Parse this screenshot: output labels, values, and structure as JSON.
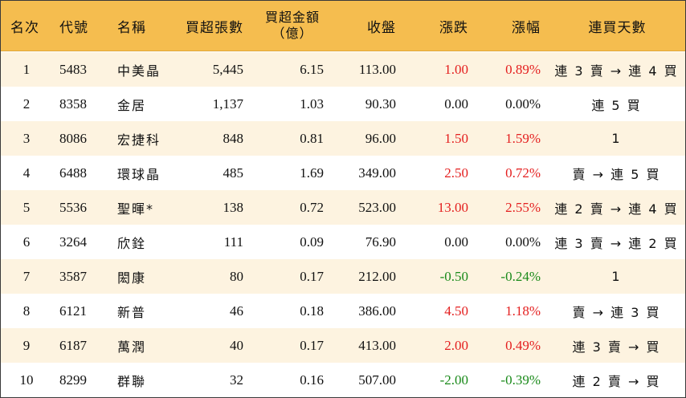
{
  "headers": {
    "rank": "名次",
    "code": "代號",
    "name": "名稱",
    "net_lots": "買超張數",
    "net_amount_line1": "買超金額",
    "net_amount_line2": "（億）",
    "close": "收盤",
    "change": "漲跌",
    "change_pct": "漲幅",
    "streak": "連買天數"
  },
  "colors": {
    "header_bg": "#f5bd4f",
    "row_alt_bg": "#fdf3e0",
    "up": "#e41f1f",
    "down": "#1a8a1a"
  },
  "rows": [
    {
      "rank": "1",
      "code": "5483",
      "name": "中美晶",
      "net_lots": "5,445",
      "net_amount": "6.15",
      "close": "113.00",
      "change": "1.00",
      "change_pct": "0.89%",
      "dir": "up",
      "streak": "連 3 賣 → 連 4 買"
    },
    {
      "rank": "2",
      "code": "8358",
      "name": "金居",
      "net_lots": "1,137",
      "net_amount": "1.03",
      "close": "90.30",
      "change": "0.00",
      "change_pct": "0.00%",
      "dir": "flat",
      "streak": "連 5 買"
    },
    {
      "rank": "3",
      "code": "8086",
      "name": "宏捷科",
      "net_lots": "848",
      "net_amount": "0.81",
      "close": "96.00",
      "change": "1.50",
      "change_pct": "1.59%",
      "dir": "up",
      "streak": "1"
    },
    {
      "rank": "4",
      "code": "6488",
      "name": "環球晶",
      "net_lots": "485",
      "net_amount": "1.69",
      "close": "349.00",
      "change": "2.50",
      "change_pct": "0.72%",
      "dir": "up",
      "streak": "賣 → 連 5 買"
    },
    {
      "rank": "5",
      "code": "5536",
      "name": "聖暉*",
      "net_lots": "138",
      "net_amount": "0.72",
      "close": "523.00",
      "change": "13.00",
      "change_pct": "2.55%",
      "dir": "up",
      "streak": "連 2 賣 → 連 4 買"
    },
    {
      "rank": "6",
      "code": "3264",
      "name": "欣銓",
      "net_lots": "111",
      "net_amount": "0.09",
      "close": "76.90",
      "change": "0.00",
      "change_pct": "0.00%",
      "dir": "flat",
      "streak": "連 3 賣 → 連 2 買"
    },
    {
      "rank": "7",
      "code": "3587",
      "name": "閎康",
      "net_lots": "80",
      "net_amount": "0.17",
      "close": "212.00",
      "change": "-0.50",
      "change_pct": "-0.24%",
      "dir": "down",
      "streak": "1"
    },
    {
      "rank": "8",
      "code": "6121",
      "name": "新普",
      "net_lots": "46",
      "net_amount": "0.18",
      "close": "386.00",
      "change": "4.50",
      "change_pct": "1.18%",
      "dir": "up",
      "streak": "賣 → 連 3 買"
    },
    {
      "rank": "9",
      "code": "6187",
      "name": "萬潤",
      "net_lots": "40",
      "net_amount": "0.17",
      "close": "413.00",
      "change": "2.00",
      "change_pct": "0.49%",
      "dir": "up",
      "streak": "連 3 賣 → 買"
    },
    {
      "rank": "10",
      "code": "8299",
      "name": "群聯",
      "net_lots": "32",
      "net_amount": "0.16",
      "close": "507.00",
      "change": "-2.00",
      "change_pct": "-0.39%",
      "dir": "down",
      "streak": "連 2 賣 → 買"
    }
  ]
}
